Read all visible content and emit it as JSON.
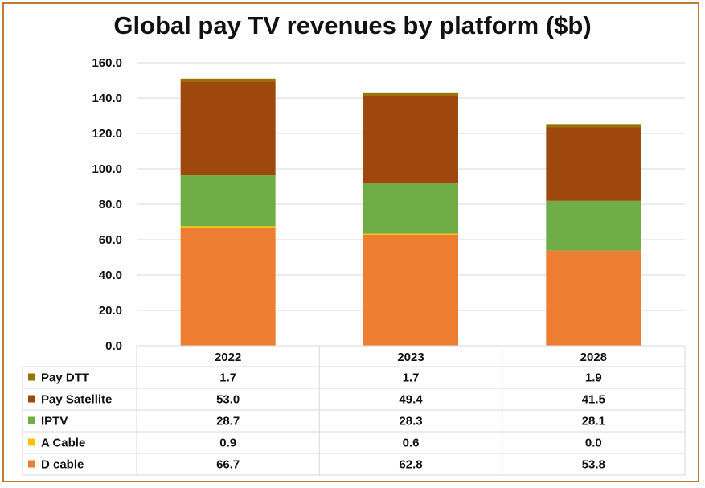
{
  "chart_data": {
    "type": "bar",
    "stacked": true,
    "title": "Global pay TV revenues by platform ($b)",
    "categories": [
      "2022",
      "2023",
      "2028"
    ],
    "ylim": [
      0,
      160
    ],
    "yticks": [
      "0.0",
      "20.0",
      "40.0",
      "60.0",
      "80.0",
      "100.0",
      "120.0",
      "140.0",
      "160.0"
    ],
    "grid": true,
    "legend": "data table, left",
    "series": [
      {
        "name": "D cable",
        "color": "#ed7d31",
        "values": [
          66.7,
          62.8,
          53.8
        ],
        "labels": [
          "66.7",
          "62.8",
          "53.8"
        ]
      },
      {
        "name": "A Cable",
        "color": "#ffc000",
        "values": [
          0.9,
          0.6,
          0.0
        ],
        "labels": [
          "0.9",
          "0.6",
          "0.0"
        ]
      },
      {
        "name": "IPTV",
        "color": "#70ad47",
        "values": [
          28.7,
          28.3,
          28.1
        ],
        "labels": [
          "28.7",
          "28.3",
          "28.1"
        ]
      },
      {
        "name": "Pay Satellite",
        "color": "#9e480e",
        "values": [
          53.0,
          49.4,
          41.5
        ],
        "labels": [
          "53.0",
          "49.4",
          "41.5"
        ]
      },
      {
        "name": "Pay DTT",
        "color": "#997300",
        "values": [
          1.7,
          1.7,
          1.9
        ],
        "labels": [
          "1.7",
          "1.7",
          "1.9"
        ]
      }
    ],
    "table_order": [
      "Pay DTT",
      "Pay Satellite",
      "IPTV",
      "A Cable",
      "D cable"
    ]
  }
}
